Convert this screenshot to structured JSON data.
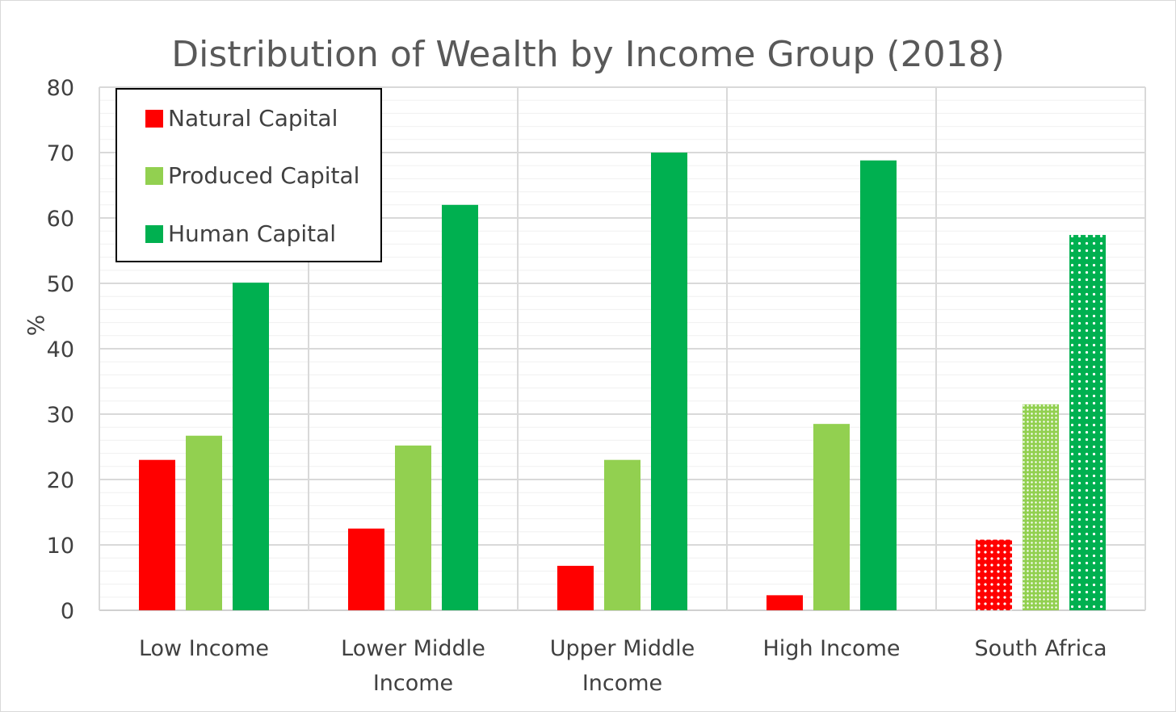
{
  "chart_data": {
    "type": "bar",
    "title": "Distribution of Wealth by Income Group (2018)",
    "xlabel": "",
    "ylabel": "%",
    "ylim": [
      0,
      80
    ],
    "yticks": [
      0,
      10,
      20,
      30,
      40,
      50,
      60,
      70,
      80
    ],
    "minor_grid_step": 2,
    "grid": true,
    "legend_position": "top-left",
    "categories": [
      [
        "Low Income"
      ],
      [
        "Lower Middle",
        "Income"
      ],
      [
        "Upper Middle",
        "Income"
      ],
      [
        "High Income"
      ],
      [
        "South Africa"
      ]
    ],
    "patterned_categories": [
      4
    ],
    "series": [
      {
        "name": "Natural Capital",
        "color": "#ff0000",
        "values": [
          23,
          12.5,
          6.8,
          2.3,
          10.8
        ]
      },
      {
        "name": "Produced Capital",
        "color": "#92d050",
        "values": [
          26.7,
          25.2,
          23,
          28.5,
          31.5
        ]
      },
      {
        "name": "Human Capital",
        "color": "#00b050",
        "values": [
          50.1,
          62,
          70,
          68.8,
          57.4
        ]
      }
    ]
  }
}
